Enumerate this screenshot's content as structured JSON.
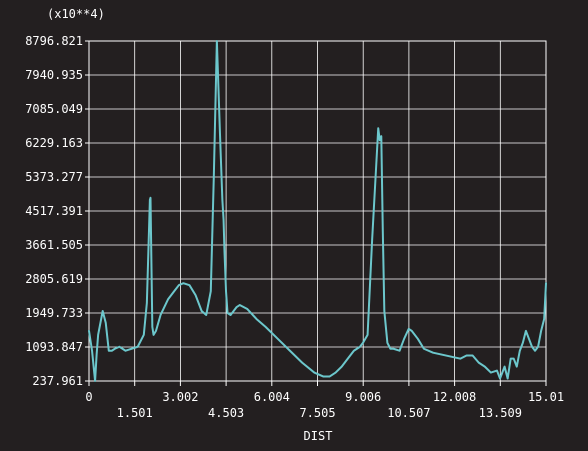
{
  "chart_data": {
    "type": "line",
    "multiplier_label": "(x10**4)",
    "xlabel": "DIST",
    "ylabel": "",
    "grid": true,
    "xlim": [
      0,
      15.01
    ],
    "ylim": [
      237.961,
      8796.821
    ],
    "y_ticks": [
      "237.961",
      "1093.847",
      "1949.733",
      "2805.619",
      "3661.505",
      "4517.391",
      "5373.277",
      "6229.163",
      "7085.049",
      "7940.935",
      "8796.821"
    ],
    "x_ticks": [
      "0",
      "1.501",
      "3.002",
      "4.503",
      "6.004",
      "7.505",
      "9.006",
      "10.507",
      "12.008",
      "13.509",
      "15.01"
    ],
    "series": [
      {
        "color": "#6cc7cc",
        "x": [
          0.0,
          0.1,
          0.2,
          0.25,
          0.3,
          0.45,
          0.55,
          0.65,
          0.75,
          0.85,
          1.0,
          1.2,
          1.4,
          1.6,
          1.8,
          1.9,
          2.0,
          2.02,
          2.05,
          2.08,
          2.12,
          2.2,
          2.35,
          2.6,
          2.8,
          2.95,
          3.1,
          3.3,
          3.5,
          3.7,
          3.85,
          4.0,
          4.1,
          4.2,
          4.3,
          4.38,
          4.42,
          4.45,
          4.5,
          4.55,
          4.65,
          4.75,
          4.85,
          4.95,
          5.2,
          5.5,
          5.8,
          6.2,
          6.6,
          7.0,
          7.4,
          7.7,
          7.9,
          8.1,
          8.3,
          8.5,
          8.7,
          8.9,
          9.0,
          9.15,
          9.3,
          9.4,
          9.5,
          9.55,
          9.6,
          9.65,
          9.7,
          9.8,
          9.9,
          10.0,
          10.2,
          10.35,
          10.5,
          10.6,
          10.8,
          11.0,
          11.3,
          11.6,
          11.9,
          12.2,
          12.4,
          12.6,
          12.8,
          13.0,
          13.2,
          13.4,
          13.5,
          13.65,
          13.75,
          13.85,
          13.95,
          14.05,
          14.15,
          14.25,
          14.35,
          14.45,
          14.55,
          14.65,
          14.75,
          14.85,
          14.95,
          15.01
        ],
        "values": [
          1500,
          1000,
          237.961,
          900,
          1400,
          2000,
          1700,
          1000,
          1000,
          1050,
          1100,
          1000,
          1050,
          1100,
          1400,
          2200,
          4800,
          4850,
          3200,
          1600,
          1400,
          1500,
          1900,
          2300,
          2500,
          2650,
          2700,
          2650,
          2400,
          2000,
          1900,
          2500,
          5400,
          8796.821,
          6500,
          4800,
          4300,
          3500,
          2500,
          1950,
          1900,
          2000,
          2100,
          2150,
          2050,
          1800,
          1600,
          1300,
          1000,
          700,
          450,
          350,
          350,
          450,
          600,
          800,
          1000,
          1100,
          1200,
          1400,
          3800,
          5200,
          6600,
          6300,
          6400,
          4000,
          2000,
          1200,
          1050,
          1050,
          1000,
          1300,
          1550,
          1500,
          1300,
          1050,
          950,
          900,
          850,
          800,
          880,
          880,
          700,
          600,
          450,
          500,
          300,
          600,
          300,
          800,
          800,
          600,
          1000,
          1200,
          1500,
          1300,
          1100,
          1000,
          1100,
          1500,
          1800,
          2700
        ]
      }
    ]
  }
}
